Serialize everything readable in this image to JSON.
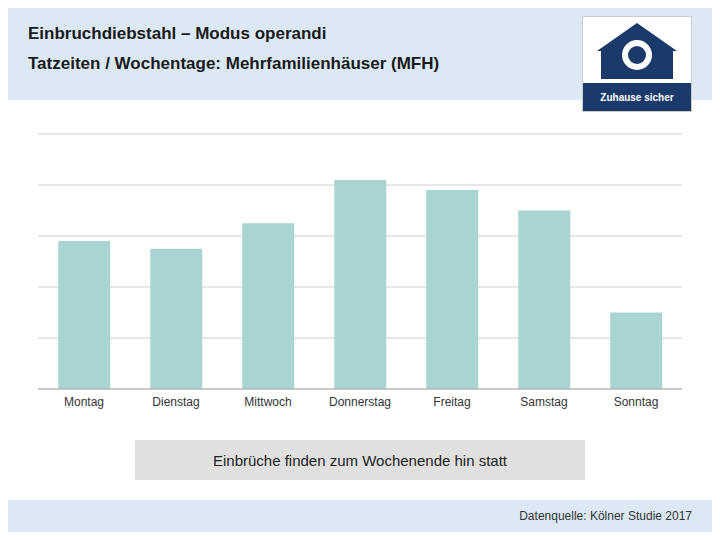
{
  "chart_data": {
    "type": "bar",
    "title": "Einbruchdiebstahl – Modus operandi",
    "subtitle": "Tatzeiten / Wochentage: Mehrfamilienhäuser (MFH)",
    "categories": [
      "Montag",
      "Dienstag",
      "Mittwoch",
      "Donnerstag",
      "Freitag",
      "Samstag",
      "Sonntag"
    ],
    "values": [
      58,
      55,
      65,
      82,
      78,
      70,
      30
    ],
    "color": "#a8d5d1",
    "ylim": [
      0,
      100
    ],
    "yticks": [
      0,
      20,
      40,
      60,
      80,
      100
    ],
    "grid": true,
    "tick_labels": "x",
    "annotations": [
      "Einbrüche finden zum Wochenende hin statt",
      "Zuhause sicher"
    ],
    "source": "Datenquelle: Kölner Studie 2017"
  }
}
